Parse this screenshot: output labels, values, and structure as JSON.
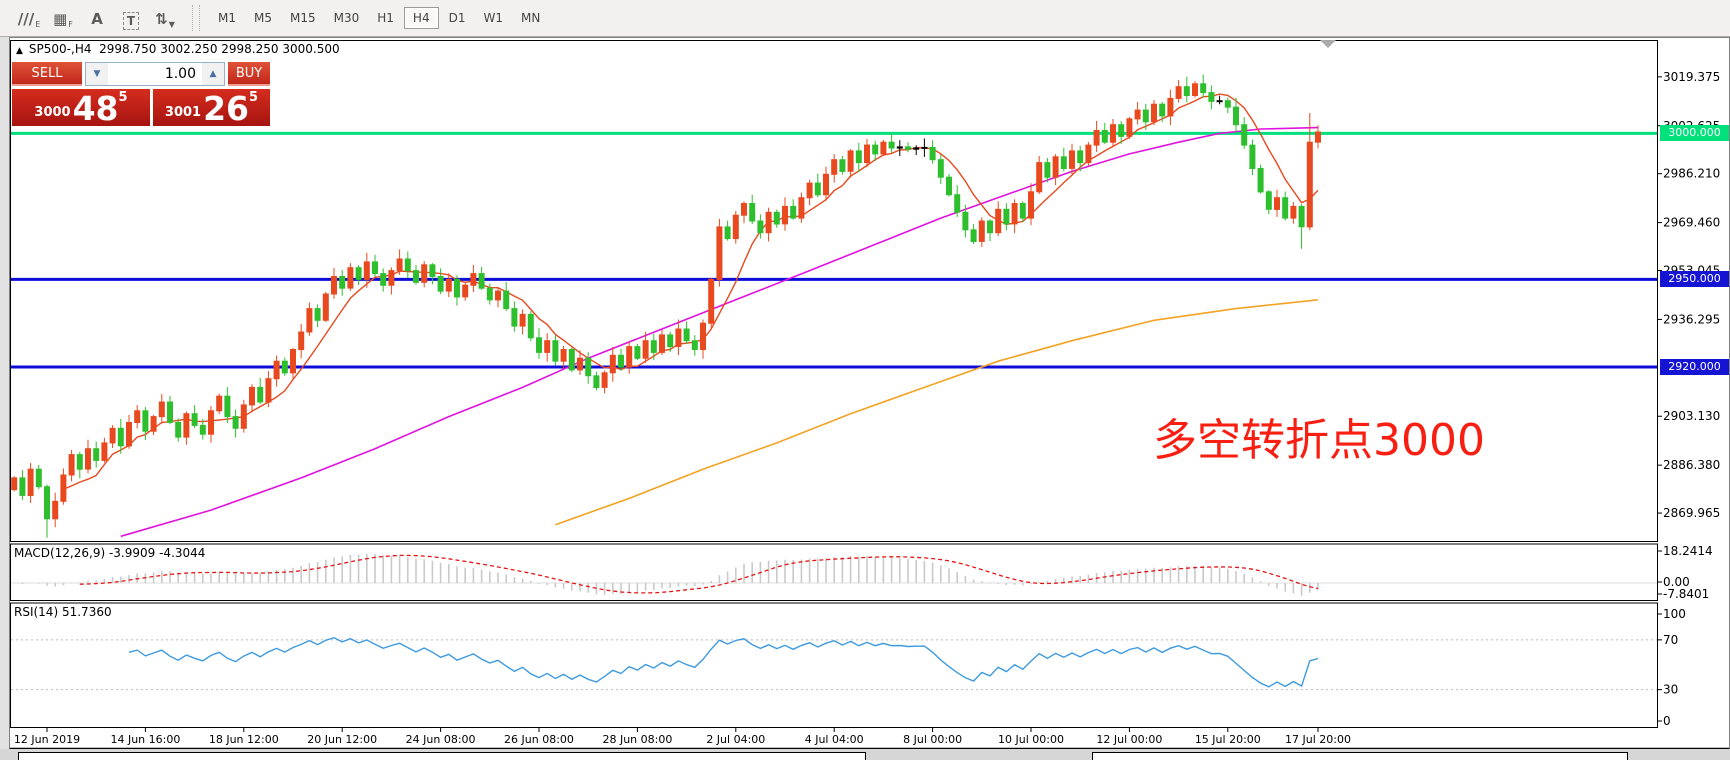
{
  "toolbar": {
    "tools": [
      {
        "name": "draw-channel-e-icon",
        "glyph": "///",
        "sub": "E"
      },
      {
        "name": "fibonacci-grid-f-icon",
        "glyph": "▦",
        "sub": "F"
      },
      {
        "name": "text-a-icon",
        "glyph": "A",
        "sub": ""
      },
      {
        "name": "text-frame-t-icon",
        "glyph": "T",
        "sub": "",
        "boxed": true
      },
      {
        "name": "cycle-arrows-icon",
        "glyph": "⇅",
        "sub": "▼"
      }
    ],
    "timeframes": [
      "M1",
      "M5",
      "M15",
      "M30",
      "H1",
      "H4",
      "D1",
      "W1",
      "MN"
    ],
    "active_timeframe": "H4"
  },
  "chart": {
    "collapse_arrow": "▲",
    "symbol_tf": "SP500-,H4",
    "ohlc_string": "2998.750 3002.250 2998.250 3000.500"
  },
  "trade_panel": {
    "sell_label": "SELL",
    "buy_label": "BUY",
    "volume": "1.00",
    "sell_price_small": "3000",
    "sell_price_big": "48",
    "sell_price_sup": "5",
    "buy_price_small": "3001",
    "buy_price_big": "26",
    "buy_price_sup": "5"
  },
  "annotation": {
    "text": "多空转折点3000",
    "color": "#f81e12"
  },
  "macd": {
    "title": "MACD(12,26,9)",
    "values": "-3.9909 -4.3044"
  },
  "rsi": {
    "title": "RSI(14)",
    "value": "51.7360"
  },
  "chart_data": {
    "type": "candlestick",
    "symbol": "SP500-",
    "timeframe": "H4",
    "first_open": 2878,
    "closes": [
      2882,
      2876,
      2885,
      2879,
      2868,
      2874,
      2883,
      2890,
      2885,
      2892,
      2888,
      2894,
      2899,
      2893,
      2901,
      2905,
      2898,
      2903,
      2908,
      2901,
      2896,
      2904,
      2900,
      2897,
      2905,
      2910,
      2903,
      2899,
      2907,
      2913,
      2908,
      2916,
      2922,
      2918,
      2926,
      2932,
      2940,
      2936,
      2945,
      2951,
      2947,
      2954,
      2950,
      2956,
      2952,
      2948,
      2953,
      2957,
      2953,
      2949,
      2955,
      2951,
      2946,
      2950,
      2944,
      2948,
      2952,
      2947,
      2943,
      2946,
      2940,
      2934,
      2938,
      2930,
      2925,
      2929,
      2922,
      2926,
      2919,
      2923,
      2917,
      2913,
      2918,
      2924,
      2920,
      2927,
      2923,
      2929,
      2925,
      2931,
      2927,
      2933,
      2929,
      2926,
      2935,
      2950,
      2968,
      2964,
      2972,
      2976,
      2970,
      2966,
      2973,
      2969,
      2975,
      2971,
      2978,
      2983,
      2979,
      2986,
      2991,
      2987,
      2994,
      2990,
      2996,
      2993,
      2997,
      2995,
      2995.4,
      2994.6,
      2995,
      2995.2,
      2991,
      2985,
      2979,
      2973,
      2967,
      2963,
      2970,
      2966,
      2974,
      2969,
      2976,
      2971,
      2980,
      2990,
      2985,
      2992,
      2988,
      2994,
      2990,
      2996,
      3001,
      2997,
      3003,
      2999,
      3005,
      3008,
      3004,
      3010,
      3006,
      3012,
      3016,
      3013,
      3017,
      3014,
      3011,
      3011.2,
      3009,
      3003,
      2996,
      2988,
      2980,
      2974,
      2978,
      2971,
      2975,
      2968,
      2997,
      3000.5
    ],
    "wick_overrides": {
      "4": {
        "low": 2861.5
      },
      "143": {
        "high": 3019.4
      },
      "157": {
        "low": 2960.5
      },
      "158": {
        "high": 3007
      }
    },
    "colors": {
      "bull": "#e8491f",
      "bear": "#2dbf2d",
      "doji": "#000000",
      "ma_fast": "#e8491f",
      "ma_magenta": "#e012e0",
      "ma_orange": "#f3a224",
      "macd_hist": "#c9c9c9",
      "macd_signal": "#e61414",
      "rsi_line": "#3e9ade",
      "level_green": "#00e17c",
      "level_blue": "#0d0dd8"
    },
    "hlines": [
      {
        "price": 3000,
        "color": "#00e17c",
        "label": "3000.000",
        "badge_bg": "#00e17c"
      },
      {
        "price": 2950,
        "color": "#0d0dd8",
        "label": "2950.000",
        "badge_bg": "#1414d2"
      },
      {
        "price": 2920,
        "color": "#0d0dd8",
        "label": "2920.000",
        "badge_bg": "#1414d2"
      }
    ],
    "ma_magenta": [
      [
        13,
        2862
      ],
      [
        24,
        2871
      ],
      [
        35,
        2882
      ],
      [
        44,
        2892
      ],
      [
        53,
        2903
      ],
      [
        62,
        2913
      ],
      [
        70,
        2923
      ],
      [
        79,
        2933
      ],
      [
        88,
        2943
      ],
      [
        97,
        2953
      ],
      [
        105,
        2962
      ],
      [
        113,
        2971
      ],
      [
        122,
        2980
      ],
      [
        129,
        2987
      ],
      [
        136,
        2993
      ],
      [
        142,
        2997
      ],
      [
        147,
        3000
      ],
      [
        152,
        3001.5
      ],
      [
        159,
        3002
      ]
    ],
    "ma_orange": [
      [
        66,
        2866
      ],
      [
        75,
        2875
      ],
      [
        84,
        2885
      ],
      [
        93,
        2894
      ],
      [
        102,
        2904
      ],
      [
        111,
        2913
      ],
      [
        120,
        2922
      ],
      [
        129,
        2929
      ],
      [
        139,
        2936
      ],
      [
        149,
        2940
      ],
      [
        159,
        2943
      ]
    ],
    "price_axis_labels": [
      3019.375,
      3002.625,
      2986.21,
      2969.46,
      2953.045,
      2936.295,
      2903.13,
      2886.38,
      2869.965
    ],
    "macd_axis": [
      "18.2414",
      "0.00",
      "-7.8401"
    ],
    "rsi_axis": [
      "100",
      "70",
      "30",
      "0"
    ],
    "rsi_levels": [
      70,
      30
    ],
    "y_range_main": [
      2860.4,
      3032
    ],
    "x_ticks": [
      {
        "i": 4,
        "label": "12 Jun 2019"
      },
      {
        "i": 16,
        "label": "14 Jun 16:00"
      },
      {
        "i": 28,
        "label": "18 Jun 12:00"
      },
      {
        "i": 40,
        "label": "20 Jun 12:00"
      },
      {
        "i": 52,
        "label": "24 Jun 08:00"
      },
      {
        "i": 64,
        "label": "26 Jun 08:00"
      },
      {
        "i": 76,
        "label": "28 Jun 08:00"
      },
      {
        "i": 88,
        "label": "2 Jul 04:00"
      },
      {
        "i": 100,
        "label": "4 Jul 04:00"
      },
      {
        "i": 112,
        "label": "8 Jul 00:00"
      },
      {
        "i": 124,
        "label": "10 Jul 00:00"
      },
      {
        "i": 136,
        "label": "12 Jul 00:00"
      },
      {
        "i": 148,
        "label": "15 Jul 20:00"
      },
      {
        "i": 159,
        "label": "17 Jul 20:00"
      }
    ]
  }
}
